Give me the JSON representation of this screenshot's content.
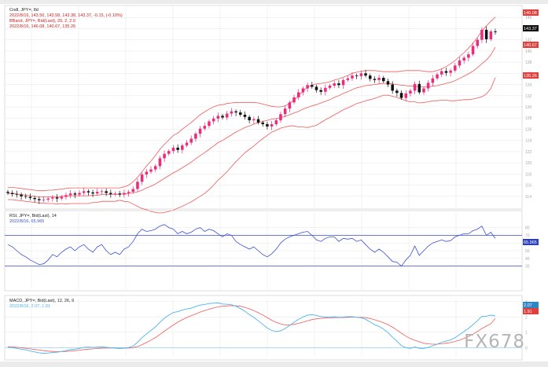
{
  "colors": {
    "bull": "#ee2a7b",
    "bear": "#111111",
    "band": "#f05a5a",
    "rsi": "#3a4fd8",
    "ref_line": "#3a4fd8",
    "macd": "#4ab4f0",
    "signal": "#f05a5a",
    "grid": "#e6e6e6"
  },
  "price_panel": {
    "label_line1": "Cndl, JPY=, 8d",
    "label_line2": "2022/8/16, 143.50, 143.58, 143.38, 143.37, -0.15, (-0.10%)",
    "label_line3": "BBand, JPY=, Bid(Last), 20, 2, 2.0",
    "label_line4": "2022/8/16, 146.08, 140.67, 135.26",
    "last_price": "143.37",
    "upper_value": "146.08",
    "middle_value": "140.67",
    "lower_value": "135.26"
  },
  "rsi_panel": {
    "label_line1": "RSI, JPY=, Bid(Last), 14",
    "label_line2": "2022/8/16, 65.965",
    "last_value": "65.965"
  },
  "macd_panel": {
    "label_line1": "MACD, JPY=, Bid(Last), 12, 26, 9",
    "label_line2": "2022/8/16, 2.07, 1.91",
    "macd_value": "2.07",
    "signal_value": "1.91"
  },
  "watermark": "FX678",
  "chart_data": [
    {
      "type": "candlestick",
      "title": "Cndl, JPY=, 8d",
      "series": [
        {
          "name": "Close",
          "values": [
            114.6,
            114.4,
            114.3,
            114.0,
            113.9,
            113.7,
            113.5,
            113.3,
            113.4,
            113.6,
            113.8,
            113.6,
            113.9,
            114.2,
            114.5,
            114.3,
            114.6,
            114.9,
            114.7,
            114.5,
            114.8,
            114.9,
            114.6,
            114.4,
            114.5,
            114.3,
            114.6,
            114.8,
            115.3,
            116.6,
            117.9,
            118.4,
            118.8,
            119.4,
            120.8,
            121.6,
            122.1,
            122.7,
            122.3,
            123.1,
            123.6,
            124.3,
            125.2,
            126.1,
            126.6,
            127.4,
            127.9,
            128.4,
            128.1,
            128.8,
            129.2,
            129.0,
            128.6,
            128.2,
            127.6,
            127.8,
            127.2,
            126.9,
            126.5,
            126.9,
            127.6,
            128.7,
            129.7,
            130.8,
            131.7,
            132.6,
            133.3,
            133.9,
            133.6,
            133.0,
            132.7,
            133.4,
            133.8,
            134.2,
            133.9,
            134.8,
            135.1,
            135.6,
            135.5,
            136.0,
            135.6,
            135.0,
            134.8,
            135.2,
            134.6,
            134.0,
            132.9,
            132.5,
            131.6,
            132.4,
            132.9,
            134.1,
            132.6,
            133.3,
            134.3,
            135.1,
            135.8,
            136.4,
            136.1,
            136.5,
            137.4,
            138.3,
            138.8,
            139.4,
            140.9,
            142.0,
            143.8,
            142.1,
            143.5,
            143.37
          ]
        },
        {
          "name": "BB Upper",
          "values": [
            115.6,
            115.6,
            115.5,
            115.4,
            115.3,
            115.2,
            115.1,
            115.0,
            115.0,
            115.1,
            115.1,
            115.2,
            115.3,
            115.4,
            115.5,
            115.5,
            115.5,
            115.5,
            115.5,
            115.5,
            115.5,
            115.5,
            115.5,
            115.5,
            115.5,
            115.5,
            115.7,
            116.0,
            116.6,
            117.4,
            118.4,
            119.4,
            120.3,
            121.3,
            122.4,
            123.3,
            124.1,
            124.9,
            125.3,
            126.0,
            126.6,
            127.2,
            127.9,
            128.6,
            129.1,
            129.6,
            130.0,
            130.3,
            130.4,
            130.6,
            130.7,
            130.8,
            130.8,
            130.8,
            130.8,
            130.8,
            130.7,
            130.5,
            130.3,
            130.1,
            130.0,
            130.0,
            130.2,
            130.6,
            131.2,
            132.0,
            132.8,
            133.5,
            133.9,
            134.1,
            134.2,
            134.3,
            134.5,
            134.8,
            135.0,
            135.3,
            135.6,
            136.0,
            136.2,
            136.4,
            136.5,
            136.5,
            136.5,
            136.4,
            136.3,
            136.3,
            136.3,
            136.3,
            136.4,
            136.5,
            136.5,
            136.5,
            136.5,
            136.4,
            136.3,
            136.3,
            136.5,
            136.8,
            137.2,
            137.7,
            138.3,
            139.0,
            139.7,
            140.5,
            141.4,
            142.4,
            143.6,
            144.5,
            145.3,
            146.08
          ]
        },
        {
          "name": "BB Middle",
          "values": [
            114.5,
            114.5,
            114.4,
            114.3,
            114.2,
            114.1,
            114.0,
            113.9,
            113.9,
            113.9,
            113.9,
            113.9,
            114.0,
            114.0,
            114.1,
            114.1,
            114.1,
            114.1,
            114.1,
            114.2,
            114.2,
            114.3,
            114.3,
            114.3,
            114.3,
            114.4,
            114.4,
            114.5,
            114.6,
            114.8,
            115.1,
            115.5,
            115.8,
            116.2,
            116.7,
            117.2,
            117.7,
            118.2,
            118.6,
            119.1,
            119.6,
            120.1,
            120.7,
            121.3,
            121.8,
            122.4,
            123.0,
            123.6,
            124.0,
            124.5,
            125.0,
            125.5,
            125.9,
            126.3,
            126.6,
            126.9,
            127.2,
            127.4,
            127.6,
            127.8,
            127.9,
            128.1,
            128.3,
            128.6,
            128.9,
            129.2,
            129.6,
            129.9,
            130.2,
            130.4,
            130.7,
            131.0,
            131.3,
            131.7,
            132.0,
            132.4,
            132.7,
            133.1,
            133.4,
            133.6,
            133.8,
            133.9,
            134.0,
            134.1,
            134.2,
            134.2,
            134.1,
            134.0,
            133.9,
            133.8,
            133.7,
            133.7,
            133.6,
            133.6,
            133.6,
            133.7,
            133.8,
            134.0,
            134.2,
            134.4,
            134.7,
            135.1,
            135.5,
            135.9,
            136.4,
            137.0,
            137.7,
            138.4,
            139.3,
            140.67
          ]
        },
        {
          "name": "BB Lower",
          "values": [
            113.4,
            113.4,
            113.3,
            113.2,
            113.1,
            113.0,
            112.9,
            112.8,
            112.8,
            112.7,
            112.7,
            112.6,
            112.7,
            112.6,
            112.7,
            112.7,
            112.7,
            112.7,
            112.7,
            112.9,
            112.9,
            113.1,
            113.1,
            113.1,
            113.1,
            113.3,
            113.1,
            113.0,
            112.6,
            112.2,
            111.8,
            111.6,
            111.3,
            111.1,
            111.0,
            111.1,
            111.3,
            111.5,
            111.9,
            112.2,
            112.6,
            113.0,
            113.5,
            114.0,
            114.5,
            115.2,
            116.0,
            116.9,
            117.6,
            118.4,
            119.3,
            120.2,
            121.0,
            121.8,
            122.4,
            123.0,
            123.7,
            124.3,
            124.9,
            125.5,
            125.8,
            126.2,
            126.4,
            126.6,
            126.6,
            126.4,
            126.4,
            126.3,
            126.5,
            126.7,
            127.2,
            127.7,
            128.1,
            128.6,
            129.0,
            129.5,
            129.8,
            130.2,
            130.6,
            130.8,
            131.1,
            131.3,
            131.5,
            131.8,
            132.1,
            132.1,
            131.9,
            131.7,
            131.4,
            131.1,
            130.9,
            130.9,
            130.7,
            130.8,
            130.9,
            131.1,
            131.1,
            131.2,
            131.2,
            131.1,
            131.1,
            131.2,
            131.3,
            131.3,
            131.4,
            131.6,
            131.8,
            132.3,
            133.3,
            135.26
          ]
        }
      ],
      "bb_params": {
        "period": 20,
        "stddev": 2.0
      },
      "ylim": [
        112,
        148
      ],
      "ytick_labels": [
        "114",
        "116",
        "118",
        "120",
        "122",
        "124",
        "126",
        "128",
        "130",
        "132",
        "134",
        "136",
        "138",
        "140",
        "142",
        "144",
        "146"
      ],
      "last_value_tags": [
        "146.08",
        "143.37",
        "140.67",
        "135.26"
      ],
      "grid": true
    },
    {
      "type": "line",
      "title": "RSI, JPY=, Bid(Last), 14",
      "series": [
        {
          "name": "RSI",
          "values": [
            58,
            55,
            50,
            45,
            42,
            38,
            35,
            32,
            33,
            38,
            45,
            42,
            48,
            52,
            55,
            50,
            55,
            58,
            52,
            48,
            55,
            58,
            50,
            45,
            48,
            45,
            52,
            55,
            62,
            72,
            78,
            75,
            76,
            78,
            82,
            84,
            80,
            78,
            72,
            75,
            72,
            74,
            78,
            80,
            75,
            78,
            76,
            72,
            68,
            72,
            70,
            62,
            58,
            55,
            52,
            55,
            50,
            45,
            42,
            46,
            52,
            60,
            65,
            68,
            70,
            72,
            74,
            75,
            70,
            64,
            62,
            66,
            68,
            68,
            62,
            66,
            65,
            66,
            62,
            64,
            58,
            52,
            48,
            52,
            48,
            42,
            36,
            35,
            30,
            38,
            44,
            56,
            44,
            50,
            56,
            60,
            62,
            64,
            62,
            63,
            68,
            70,
            72,
            72,
            76,
            78,
            82,
            70,
            74,
            65.965
          ]
        }
      ],
      "ylim": [
        0,
        100
      ],
      "ytick_labels": [
        "30",
        "40",
        "50",
        "60",
        "70",
        "80"
      ],
      "reference_lines": [
        70,
        30
      ],
      "grid": true
    },
    {
      "type": "line",
      "title": "MACD, JPY=, Bid(Last), 12, 26, 9",
      "series": [
        {
          "name": "MACD",
          "values": [
            0.02,
            0.0,
            -0.05,
            -0.1,
            -0.15,
            -0.22,
            -0.28,
            -0.34,
            -0.37,
            -0.36,
            -0.31,
            -0.3,
            -0.25,
            -0.2,
            -0.12,
            -0.1,
            -0.05,
            0.02,
            0.03,
            0.01,
            0.03,
            0.05,
            0.02,
            -0.02,
            -0.03,
            -0.06,
            -0.04,
            0.0,
            0.1,
            0.35,
            0.65,
            0.9,
            1.12,
            1.35,
            1.65,
            1.92,
            2.12,
            2.3,
            2.35,
            2.45,
            2.52,
            2.58,
            2.68,
            2.78,
            2.82,
            2.88,
            2.9,
            2.92,
            2.85,
            2.83,
            2.8,
            2.7,
            2.55,
            2.38,
            2.15,
            1.98,
            1.75,
            1.52,
            1.28,
            1.12,
            1.05,
            1.1,
            1.25,
            1.45,
            1.65,
            1.85,
            2.0,
            2.12,
            2.15,
            2.1,
            2.02,
            2.0,
            2.0,
            2.02,
            1.98,
            2.0,
            2.02,
            2.02,
            1.98,
            1.95,
            1.85,
            1.68,
            1.5,
            1.38,
            1.2,
            0.98,
            0.68,
            0.42,
            0.12,
            0.0,
            -0.05,
            0.05,
            -0.05,
            -0.05,
            0.02,
            0.12,
            0.22,
            0.35,
            0.42,
            0.5,
            0.65,
            0.85,
            1.05,
            1.25,
            1.5,
            1.75,
            2.05,
            2.05,
            2.12,
            2.07
          ]
        },
        {
          "name": "Signal",
          "values": [
            0.05,
            0.04,
            0.02,
            -0.01,
            -0.04,
            -0.08,
            -0.12,
            -0.16,
            -0.2,
            -0.23,
            -0.25,
            -0.26,
            -0.26,
            -0.25,
            -0.22,
            -0.2,
            -0.17,
            -0.13,
            -0.1,
            -0.08,
            -0.06,
            -0.04,
            -0.03,
            -0.03,
            -0.03,
            -0.04,
            -0.04,
            -0.03,
            0.0,
            0.07,
            0.19,
            0.33,
            0.49,
            0.66,
            0.86,
            1.07,
            1.28,
            1.48,
            1.66,
            1.82,
            1.96,
            2.08,
            2.2,
            2.32,
            2.42,
            2.51,
            2.59,
            2.66,
            2.7,
            2.72,
            2.74,
            2.73,
            2.7,
            2.63,
            2.53,
            2.42,
            2.28,
            2.13,
            1.96,
            1.79,
            1.65,
            1.55,
            1.48,
            1.48,
            1.52,
            1.58,
            1.66,
            1.75,
            1.83,
            1.88,
            1.91,
            1.93,
            1.94,
            1.96,
            1.96,
            1.97,
            1.98,
            1.99,
            1.99,
            1.98,
            1.96,
            1.9,
            1.82,
            1.73,
            1.63,
            1.5,
            1.33,
            1.15,
            0.94,
            0.75,
            0.59,
            0.48,
            0.38,
            0.29,
            0.24,
            0.22,
            0.22,
            0.25,
            0.29,
            0.33,
            0.4,
            0.49,
            0.6,
            0.72,
            0.88,
            1.05,
            1.25,
            1.41,
            1.55,
            1.91
          ]
        }
      ],
      "ylim": [
        -0.6,
        3.2
      ],
      "ytick_labels": [
        "0",
        "1",
        "2",
        "3"
      ],
      "grid": true
    }
  ]
}
